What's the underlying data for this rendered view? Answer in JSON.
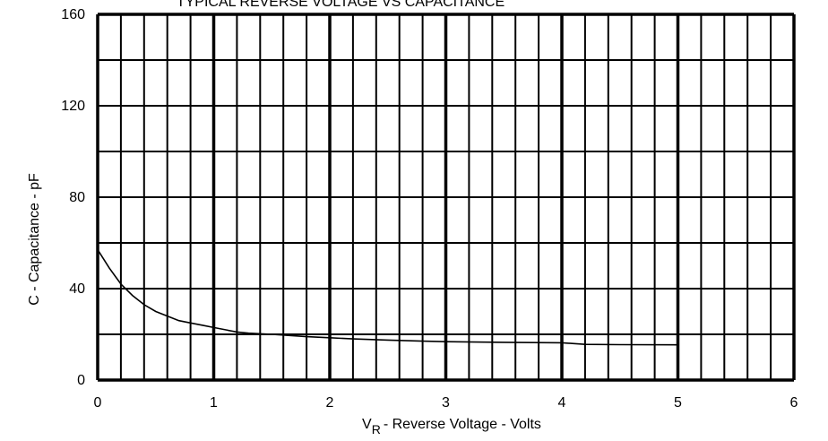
{
  "chart_data": {
    "type": "line",
    "title": "TYPICAL REVERSE VOLTAGE VS CAPACITANCE",
    "xlabel_main": "V",
    "xlabel_sub": "R",
    "xlabel_rest": "- Reverse Voltage - Volts",
    "ylabel": "C - Capacitance - pF",
    "xlim": [
      0,
      6
    ],
    "ylim": [
      0,
      160
    ],
    "x_ticks": [
      "0",
      "1",
      "2",
      "3",
      "4",
      "5",
      "6"
    ],
    "y_ticks": [
      "0",
      "40",
      "80",
      "120",
      "160"
    ],
    "grid": true,
    "series": [
      {
        "x": [
          0.0,
          0.1,
          0.2,
          0.3,
          0.4,
          0.5,
          0.6,
          0.7,
          0.8,
          0.9,
          1.0,
          1.1,
          1.2,
          1.3,
          1.5,
          1.8,
          2.0,
          2.2,
          2.5,
          2.8,
          3.0,
          3.5,
          4.0,
          4.2,
          4.5,
          5.0
        ],
        "y": [
          57,
          49,
          42,
          37,
          33,
          30,
          28,
          26,
          25,
          24,
          23,
          22,
          21,
          20.5,
          20,
          19,
          18.5,
          18,
          17.5,
          17,
          16.8,
          16.5,
          16.3,
          15.6,
          15.5,
          15.4
        ]
      }
    ]
  }
}
